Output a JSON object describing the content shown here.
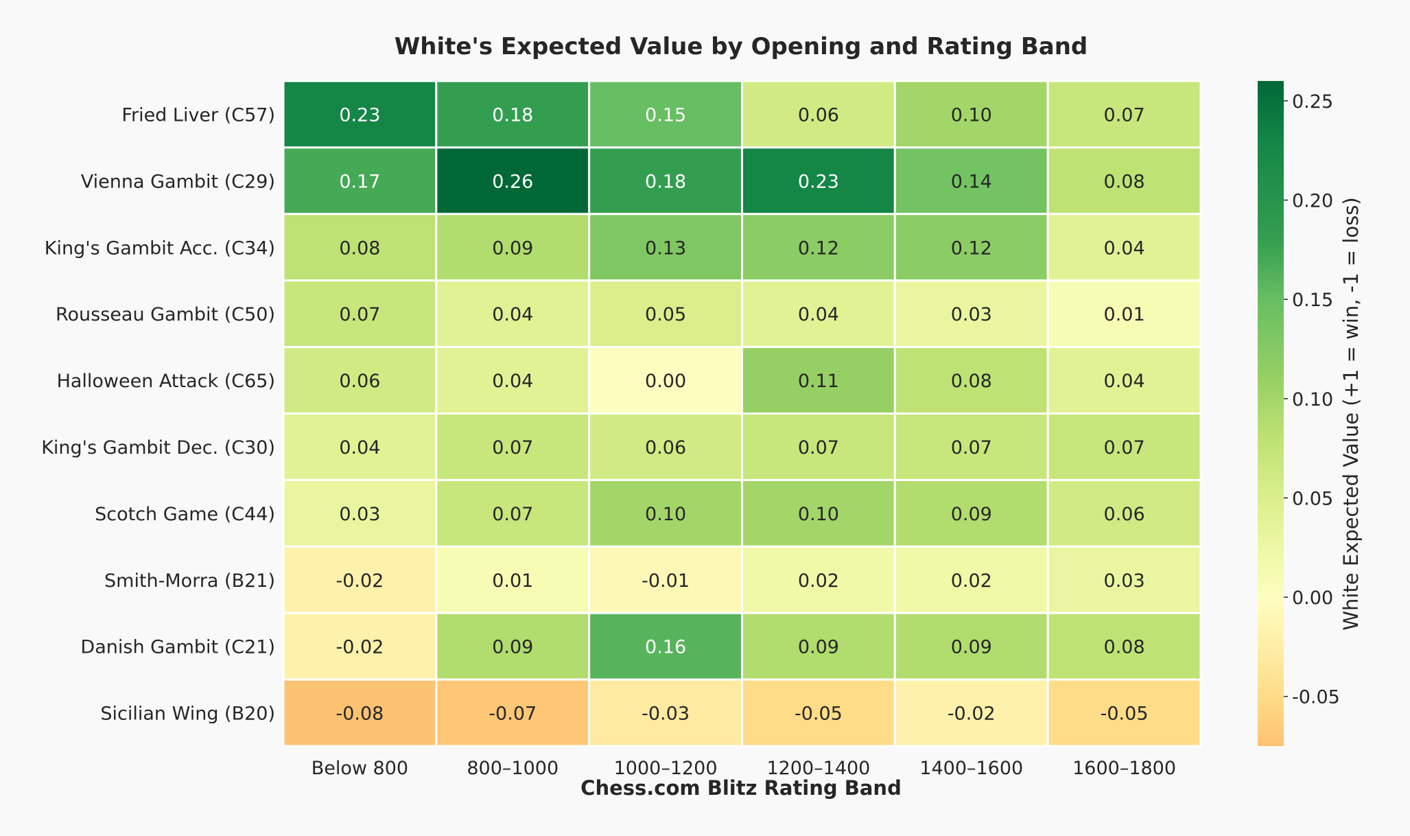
{
  "chart_data": {
    "type": "heatmap",
    "title": "White's Expected Value by Opening and Rating Band",
    "xlabel": "Chess.com Blitz Rating Band",
    "ylabel": "",
    "colorbar_label": "White Expected Value (+1 = win, -1 = loss)",
    "categories": [
      "Below 800",
      "800–1000",
      "1000–1200",
      "1200–1400",
      "1400–1600",
      "1600–1800"
    ],
    "rows": [
      "Fried Liver (C57)",
      "Vienna Gambit (C29)",
      "King's Gambit Acc. (C34)",
      "Rousseau Gambit (C50)",
      "Halloween Attack (C65)",
      "King's Gambit Dec. (C30)",
      "Scotch Game (C44)",
      "Smith-Morra (B21)",
      "Danish Gambit (C21)",
      "Sicilian Wing (B20)"
    ],
    "values": [
      [
        "0.23",
        "0.18",
        "0.15",
        "0.06",
        "0.10",
        "0.07"
      ],
      [
        "0.17",
        "0.26",
        "0.18",
        "0.23",
        "0.14",
        "0.08"
      ],
      [
        "0.08",
        "0.09",
        "0.13",
        "0.12",
        "0.12",
        "0.04"
      ],
      [
        "0.07",
        "0.04",
        "0.05",
        "0.04",
        "0.03",
        "0.01"
      ],
      [
        "0.06",
        "0.04",
        "0.00",
        "0.11",
        "0.08",
        "0.04"
      ],
      [
        "0.04",
        "0.07",
        "0.06",
        "0.07",
        "0.07",
        "0.07"
      ],
      [
        "0.03",
        "0.07",
        "0.10",
        "0.10",
        "0.09",
        "0.06"
      ],
      [
        "-0.02",
        "0.01",
        "-0.01",
        "0.02",
        "0.02",
        "0.03"
      ],
      [
        "-0.02",
        "0.09",
        "0.16",
        "0.09",
        "0.09",
        "0.08"
      ],
      [
        "-0.08",
        "-0.07",
        "-0.03",
        "-0.05",
        "-0.02",
        "-0.05"
      ]
    ],
    "colorbar_ticks": [
      "0.25",
      "0.20",
      "0.15",
      "0.10",
      "0.05",
      "0.00",
      "-0.05"
    ],
    "vmin": -0.075,
    "vmax": 0.26,
    "colormap": "RdYlGn",
    "grid": false,
    "colors": {
      "background": "#f9f9f9",
      "cell_border": "#ffffff",
      "text": "#262626",
      "light_text": "#ffffff"
    }
  }
}
